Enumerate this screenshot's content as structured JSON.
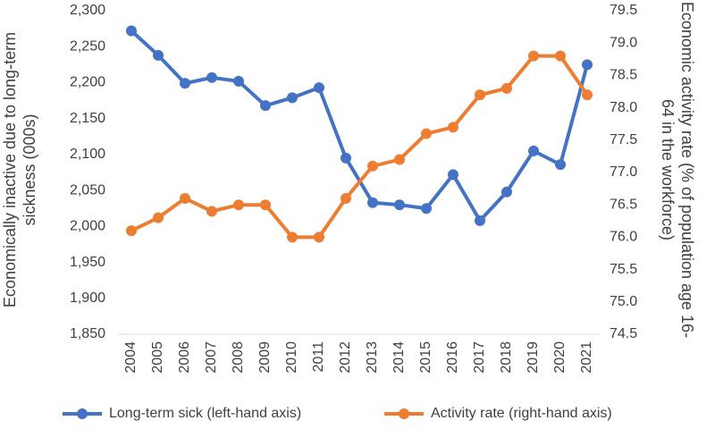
{
  "chart_data": {
    "type": "line",
    "ylabel": "Economically inactive due to long-term sickness (000s)",
    "y2label": "Economic activity rate (% of population age 16-64 in the workforce)",
    "categories": [
      "2004",
      "2005",
      "2006",
      "2007",
      "2008",
      "2009",
      "2010",
      "2011",
      "2012",
      "2013",
      "2014",
      "2015",
      "2016",
      "2017",
      "2018",
      "2019",
      "2020",
      "2021"
    ],
    "series": [
      {
        "name": "Long-term sick (left-hand axis)",
        "color": "#4472c4",
        "axis": "y",
        "values": [
          2272,
          2238,
          2199,
          2207,
          2202,
          2168,
          2179,
          2193,
          2095,
          2033,
          2030,
          2025,
          2072,
          2008,
          2048,
          2105,
          2086,
          2225
        ]
      },
      {
        "name": "Activity rate (right-hand axis)",
        "color": "#ed7d31",
        "axis": "y2",
        "values": [
          76.1,
          76.3,
          76.6,
          76.4,
          76.5,
          76.5,
          76.0,
          76.0,
          76.6,
          77.1,
          77.2,
          77.6,
          77.7,
          78.2,
          78.3,
          78.8,
          78.8,
          78.2
        ]
      }
    ],
    "ylim": [
      1850,
      2300
    ],
    "yticks": [
      {
        "value": 1850,
        "label": "1,850"
      },
      {
        "value": 1900,
        "label": "1,900"
      },
      {
        "value": 1950,
        "label": "1,950"
      },
      {
        "value": 2000,
        "label": "2,000"
      },
      {
        "value": 2050,
        "label": "2,050"
      },
      {
        "value": 2100,
        "label": "2,100"
      },
      {
        "value": 2150,
        "label": "2,150"
      },
      {
        "value": 2200,
        "label": "2,200"
      },
      {
        "value": 2250,
        "label": "2,250"
      },
      {
        "value": 2300,
        "label": "2,300"
      }
    ],
    "y2lim": [
      74.5,
      79.5
    ],
    "y2ticks": [
      74.5,
      {
        "value": 75,
        "label": "75.0"
      },
      75.5,
      {
        "value": 76,
        "label": "76.0"
      },
      76.5,
      {
        "value": 77,
        "label": "77.0"
      },
      77.5,
      {
        "value": 78,
        "label": "78.0"
      },
      78.5,
      {
        "value": 79,
        "label": "79.0"
      },
      79.5
    ],
    "legend": "bottom",
    "grid": false
  }
}
